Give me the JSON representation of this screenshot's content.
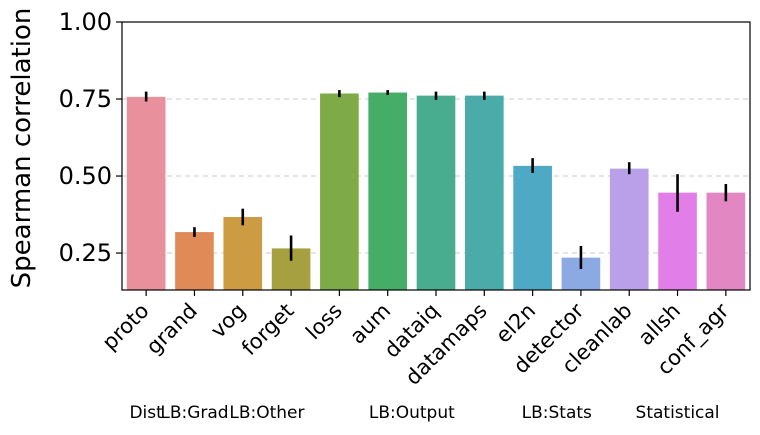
{
  "chart_data": {
    "type": "bar",
    "title": "",
    "xlabel": "",
    "ylabel": "Spearman correlation",
    "ylim": [
      0.13,
      1.0
    ],
    "yticks": [
      "0.25",
      "0.50",
      "0.75",
      "1.00"
    ],
    "grid": "horizontal dashed",
    "categories": [
      "proto",
      "grand",
      "vog",
      "forget",
      "loss",
      "aum",
      "dataiq",
      "datamaps",
      "el2n",
      "detector",
      "cleanlab",
      "allsh",
      "conf_agr"
    ],
    "values": [
      0.757,
      0.318,
      0.367,
      0.265,
      0.768,
      0.771,
      0.761,
      0.761,
      0.533,
      0.235,
      0.524,
      0.446,
      0.446
    ],
    "error_low": [
      0.742,
      0.302,
      0.34,
      0.225,
      0.756,
      0.763,
      0.747,
      0.747,
      0.51,
      0.198,
      0.506,
      0.384,
      0.418
    ],
    "error_high": [
      0.774,
      0.334,
      0.394,
      0.307,
      0.779,
      0.779,
      0.774,
      0.774,
      0.558,
      0.273,
      0.545,
      0.506,
      0.474
    ],
    "colors": [
      "#e8909c",
      "#e08a58",
      "#cc9b42",
      "#a6a040",
      "#7eab48",
      "#46ad68",
      "#48ad8e",
      "#4aaba8",
      "#4eaac4",
      "#8ba9e2",
      "#b9a0e8",
      "#e17ee8",
      "#e287c2"
    ],
    "groups": [
      "Dist",
      "LB:Grad",
      "LB:Other",
      "LB:Output",
      "LB:Stats",
      "Statistical"
    ],
    "group_spans": [
      [
        0,
        0
      ],
      [
        1,
        1
      ],
      [
        2,
        3
      ],
      [
        4,
        7
      ],
      [
        8,
        9
      ],
      [
        10,
        12
      ]
    ]
  }
}
